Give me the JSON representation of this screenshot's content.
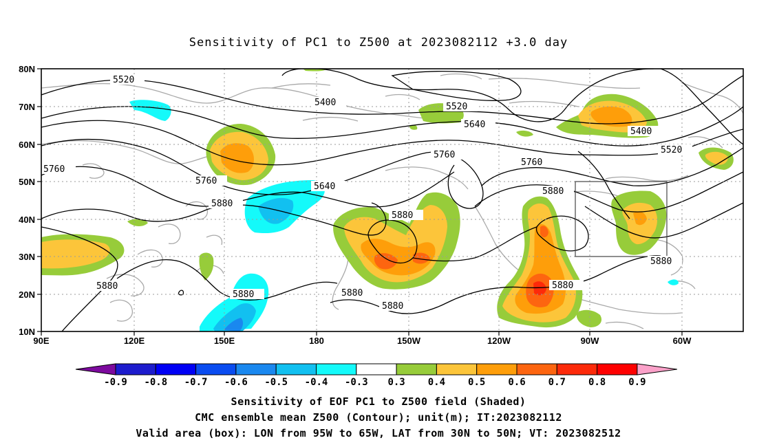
{
  "title": "Sensitivity of PC1 to Z500 at 2023082112 +3.0 day",
  "lat_ticks": [
    "80N",
    "70N",
    "60N",
    "50N",
    "40N",
    "30N",
    "20N",
    "10N"
  ],
  "lon_ticks": [
    "90E",
    "120E",
    "150E",
    "180",
    "150W",
    "120W",
    "90W",
    "60W"
  ],
  "contour_labels": [
    "5520",
    "5400",
    "5520",
    "5640",
    "5400",
    "5520",
    "5760",
    "5760",
    "5640",
    "5760",
    "5760",
    "5880",
    "5880",
    "5880",
    "5880",
    "5880",
    "5880",
    "5880",
    "5880",
    "5880"
  ],
  "colorbar": {
    "labels": [
      "-0.9",
      "-0.8",
      "-0.7",
      "-0.6",
      "-0.5",
      "-0.4",
      "-0.3",
      "0.3",
      "0.4",
      "0.5",
      "0.6",
      "0.7",
      "0.8",
      "0.9"
    ],
    "colors": [
      "#7d0a9e",
      "#1d1ccd",
      "#0000f5",
      "#0a4cf0",
      "#1a88ef",
      "#12c0f0",
      "#14fafa",
      "#ffffff",
      "#97cc3a",
      "#fcc53a",
      "#fe9e0a",
      "#fd6510",
      "#fd2a0a",
      "#fe0000",
      "#fba1c9"
    ]
  },
  "footer": {
    "line1": "Sensitivity of EOF PC1 to Z500 field (Shaded)",
    "line2": "CMC ensemble mean Z500 (Contour); unit(m); IT:2023082112",
    "line3": "Valid area (box): LON from 95W to 65W, LAT from 30N to 50N; VT: 2023082512"
  }
}
